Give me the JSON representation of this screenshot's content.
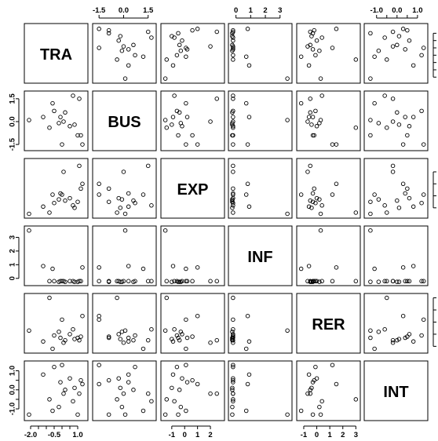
{
  "chart_data": {
    "type": "scatter",
    "variables": [
      "TRA",
      "BUS",
      "EXP",
      "INF",
      "RER",
      "INT"
    ],
    "axes": [
      {
        "var": "TRA",
        "range": [
          -2.2,
          1.45
        ],
        "ticks": [
          -2.0,
          -0.5,
          1.0
        ],
        "tick_labels": [
          "-2.0",
          "-0.5",
          "1.0"
        ],
        "minor_ticks": [
          -1.5,
          -1.0,
          0.0,
          0.5
        ]
      },
      {
        "var": "BUS",
        "range": [
          -1.7,
          1.8
        ],
        "ticks": [
          -1.5,
          0.0,
          1.5
        ],
        "tick_labels": [
          "-1.5",
          "0.0",
          "1.5"
        ]
      },
      {
        "var": "EXP",
        "range": [
          -1.6,
          2.85
        ],
        "ticks": [
          -1,
          0,
          1,
          2
        ],
        "tick_labels": [
          "-1",
          "0",
          "1",
          "2"
        ]
      },
      {
        "var": "INF",
        "range": [
          -0.3,
          3.6
        ],
        "ticks": [
          0,
          1,
          2,
          3
        ],
        "tick_labels": [
          "0",
          "1",
          "2",
          "3"
        ]
      },
      {
        "var": "RER",
        "range": [
          -1.3,
          3.1
        ],
        "ticks": [
          -1,
          0,
          1,
          2,
          3
        ],
        "tick_labels": [
          "-1",
          "0",
          "1",
          "2",
          "3"
        ]
      },
      {
        "var": "INT",
        "range": [
          -1.45,
          1.35
        ],
        "ticks": [
          -1.0,
          0.0,
          1.0
        ],
        "tick_labels": [
          "-1.0",
          "0.0",
          "1.0"
        ],
        "minor_ticks": [
          -0.5,
          0.5
        ]
      }
    ],
    "tick_layout": {
      "top": [
        1,
        3,
        5
      ],
      "bottom": [
        0,
        2,
        4
      ],
      "left": [
        1,
        3,
        5
      ],
      "right": [
        0,
        2,
        4
      ]
    },
    "observations": [
      {
        "TRA": 1.1,
        "BUS": 1.5,
        "EXP": 2.5,
        "INF": -0.2,
        "RER": -0.5,
        "INT": -0.2
      },
      {
        "TRA": -2.1,
        "BUS": 0.1,
        "EXP": -1.5,
        "INF": 3.5,
        "RER": 0.3,
        "INT": -1.3
      },
      {
        "TRA": -1.2,
        "BUS": 0.3,
        "EXP": -0.9,
        "INF": 0.9,
        "RER": -0.6,
        "INT": 0.8
      },
      {
        "TRA": -0.8,
        "BUS": -0.4,
        "EXP": -1.4,
        "INF": -0.2,
        "RER": 3.0,
        "INT": -0.5
      },
      {
        "TRA": -0.6,
        "BUS": 1.2,
        "EXP": 0.1,
        "INF": 0.7,
        "RER": -1.2,
        "INT": -1.1
      },
      {
        "TRA": -0.5,
        "BUS": 0.7,
        "EXP": -0.6,
        "INF": -0.2,
        "RER": -0.1,
        "INT": 1.2
      },
      {
        "TRA": -0.2,
        "BUS": -0.1,
        "EXP": -0.3,
        "INF": -0.25,
        "RER": 0.2,
        "INT": -0.9
      },
      {
        "TRA": -0.1,
        "BUS": 0.3,
        "EXP": 0.2,
        "INF": -0.2,
        "RER": -0.3,
        "INT": 0.4
      },
      {
        "TRA": 0.0,
        "BUS": -1.5,
        "EXP": 0.1,
        "INF": -0.2,
        "RER": 1.2,
        "INT": 1.3
      },
      {
        "TRA": 0.1,
        "BUS": 0.0,
        "EXP": 2.0,
        "INF": -0.2,
        "RER": -0.7,
        "INT": -0.2
      },
      {
        "TRA": 0.2,
        "BUS": 0.6,
        "EXP": -0.4,
        "INF": -0.25,
        "RER": -0.5,
        "INT": 0.0
      },
      {
        "TRA": 0.5,
        "BUS": -0.3,
        "EXP": -0.2,
        "INF": -0.2,
        "RER": 0.0,
        "INT": 0.6
      },
      {
        "TRA": 0.7,
        "BUS": 1.7,
        "EXP": -0.8,
        "INF": -0.2,
        "RER": 0.4,
        "INT": -0.6
      },
      {
        "TRA": 0.8,
        "BUS": -0.2,
        "EXP": -1.0,
        "INF": -0.25,
        "RER": -0.4,
        "INT": 0.1
      },
      {
        "TRA": 1.0,
        "BUS": -0.9,
        "EXP": -0.5,
        "INF": -0.25,
        "RER": -0.3,
        "INT": -1.3
      },
      {
        "TRA": 1.2,
        "BUS": -0.9,
        "EXP": 0.6,
        "INF": -0.2,
        "RER": -0.2,
        "INT": 0.5
      },
      {
        "TRA": 1.3,
        "BUS": -1.5,
        "EXP": 1.0,
        "INF": 0.8,
        "RER": 1.5,
        "INT": 0.3
      }
    ]
  }
}
